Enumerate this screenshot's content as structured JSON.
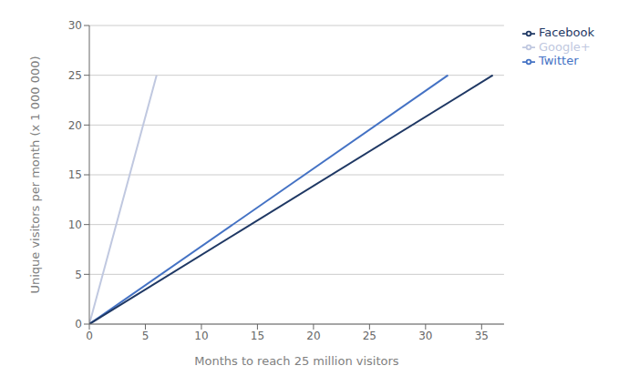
{
  "chart_data": {
    "type": "line",
    "xlabel": "Months to reach 25 million visitors",
    "ylabel": "Unique visitors per month (x 1 000 000)",
    "xlim": [
      0,
      37
    ],
    "ylim": [
      0,
      30
    ],
    "xticks": [
      0,
      5,
      10,
      15,
      20,
      25,
      30,
      35
    ],
    "yticks": [
      0,
      5,
      10,
      15,
      20,
      25,
      30
    ],
    "series": [
      {
        "name": "Google+",
        "color": "#c0c8e0",
        "x": [
          0,
          6
        ],
        "values": [
          0,
          25
        ]
      },
      {
        "name": "Twitter",
        "color": "#4472c4",
        "x": [
          0,
          32
        ],
        "values": [
          0,
          25
        ]
      },
      {
        "name": "Facebook",
        "color": "#1f3864",
        "x": [
          0,
          36
        ],
        "values": [
          0,
          25
        ]
      }
    ],
    "grid": "y",
    "legend": "right"
  }
}
